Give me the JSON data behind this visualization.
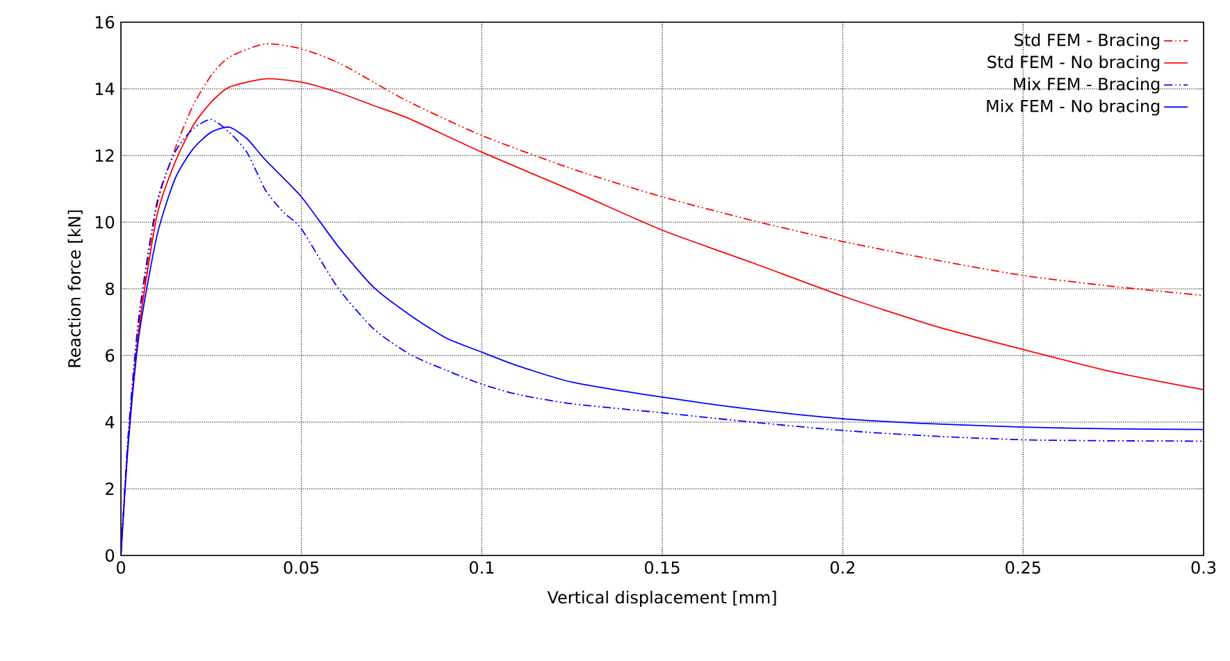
{
  "chart_data": {
    "type": "line",
    "xlabel": "Vertical displacement [mm]",
    "ylabel": "Reaction force [kN]",
    "xlim": [
      0,
      0.3
    ],
    "ylim": [
      0,
      16
    ],
    "xticks": [
      0,
      0.05,
      0.1,
      0.15,
      0.2,
      0.25,
      0.3
    ],
    "yticks": [
      0,
      2,
      4,
      6,
      8,
      10,
      12,
      14,
      16
    ],
    "grid": true,
    "legend": "top right",
    "series": [
      {
        "name": "Std FEM - Bracing",
        "color": "#ff0000",
        "line_style": "dashdot",
        "x": [
          0,
          0.002,
          0.005,
          0.01,
          0.015,
          0.02,
          0.025,
          0.03,
          0.04,
          0.05,
          0.06,
          0.07,
          0.08,
          0.1,
          0.125,
          0.15,
          0.175,
          0.2,
          0.225,
          0.25,
          0.275,
          0.3
        ],
        "values": [
          0,
          3.5,
          7,
          10.5,
          12.2,
          13.5,
          14.4,
          14.95,
          15.35,
          15.2,
          14.8,
          14.2,
          13.6,
          12.6,
          11.6,
          10.76,
          10.05,
          9.42,
          8.88,
          8.4,
          8.07,
          7.8
        ]
      },
      {
        "name": "Std FEM - No bracing",
        "color": "#ff0000",
        "line_style": "solid",
        "x": [
          0,
          0.002,
          0.005,
          0.01,
          0.015,
          0.02,
          0.025,
          0.03,
          0.04,
          0.05,
          0.06,
          0.07,
          0.08,
          0.1,
          0.125,
          0.15,
          0.175,
          0.2,
          0.225,
          0.25,
          0.275,
          0.3
        ],
        "values": [
          0,
          3.4,
          6.8,
          10.2,
          11.8,
          12.9,
          13.6,
          14.05,
          14.3,
          14.2,
          13.9,
          13.5,
          13.1,
          12.1,
          10.95,
          9.76,
          8.78,
          7.78,
          6.9,
          6.18,
          5.5,
          4.97
        ]
      },
      {
        "name": "Mix FEM - Bracing",
        "color": "#0000ff",
        "line_style": "dashdot",
        "x": [
          0,
          0.002,
          0.005,
          0.01,
          0.015,
          0.02,
          0.025,
          0.03,
          0.035,
          0.04,
          0.045,
          0.05,
          0.06,
          0.07,
          0.08,
          0.09,
          0.1,
          0.11,
          0.125,
          0.15,
          0.175,
          0.2,
          0.225,
          0.25,
          0.275,
          0.3
        ],
        "values": [
          0,
          3.6,
          7.2,
          10.6,
          12.1,
          12.8,
          13.08,
          12.7,
          12.08,
          10.97,
          10.3,
          9.8,
          8.05,
          6.8,
          6.04,
          5.56,
          5.14,
          4.83,
          4.55,
          4.28,
          4.0,
          3.75,
          3.58,
          3.47,
          3.44,
          3.43
        ]
      },
      {
        "name": "Mix FEM - No bracing",
        "color": "#0000ff",
        "line_style": "solid",
        "x": [
          0,
          0.002,
          0.005,
          0.01,
          0.015,
          0.02,
          0.025,
          0.03,
          0.035,
          0.04,
          0.05,
          0.06,
          0.07,
          0.08,
          0.09,
          0.1,
          0.11,
          0.125,
          0.15,
          0.175,
          0.2,
          0.225,
          0.25,
          0.275,
          0.3
        ],
        "values": [
          0,
          3.3,
          6.6,
          9.6,
          11.3,
          12.2,
          12.7,
          12.85,
          12.5,
          11.87,
          10.76,
          9.3,
          8.05,
          7.22,
          6.53,
          6.1,
          5.69,
          5.2,
          4.75,
          4.38,
          4.1,
          3.95,
          3.85,
          3.8,
          3.78
        ]
      }
    ]
  }
}
